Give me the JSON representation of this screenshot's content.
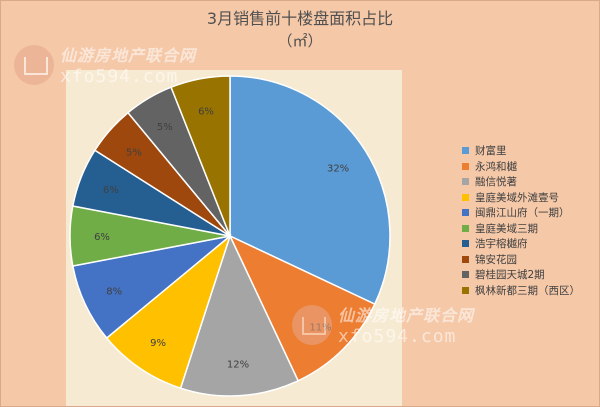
{
  "chart_data": {
    "type": "pie",
    "title": "3月销售前十楼盘面积占比",
    "unit": "（㎡）",
    "categories": [
      "财富里",
      "永鸿和樾",
      "融信悦著",
      "皇庭美域外滩壹号",
      "闽鼎江山府（一期）",
      "皇庭美域三期",
      "浩宇榕樾府",
      "锦安花园",
      "碧桂园天城2期",
      "枫林新都三期（西区）"
    ],
    "values": [
      32,
      11,
      12,
      9,
      8,
      6,
      6,
      5,
      5,
      6
    ],
    "labels": [
      "32%",
      "11%",
      "12%",
      "9%",
      "8%",
      "6%",
      "6%",
      "5%",
      "5%",
      "6%"
    ],
    "colors": [
      "#5b9bd5",
      "#ed7d31",
      "#a5a5a5",
      "#ffc000",
      "#4472c4",
      "#70ad47",
      "#255e91",
      "#9e480e",
      "#636363",
      "#997300"
    ],
    "legend_position": "right"
  },
  "watermark": {
    "cn": "仙游房地产联合网",
    "url": "xfo594.com"
  }
}
